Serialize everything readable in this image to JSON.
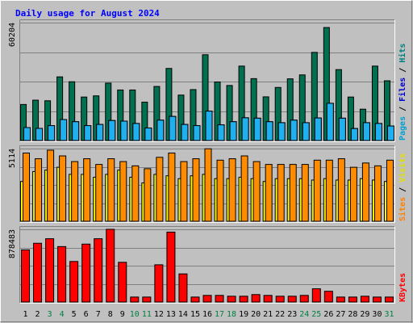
{
  "chart_data": {
    "type": "bar",
    "title": "Daily usage for August 2024",
    "categories": [
      "1",
      "2",
      "3",
      "4",
      "5",
      "6",
      "7",
      "8",
      "9",
      "10",
      "11",
      "12",
      "13",
      "14",
      "15",
      "16",
      "17",
      "18",
      "19",
      "20",
      "21",
      "22",
      "23",
      "24",
      "25",
      "26",
      "27",
      "28",
      "29",
      "30",
      "31"
    ],
    "weekend_days": [
      "3",
      "4",
      "10",
      "11",
      "17",
      "18",
      "24",
      "25",
      "31"
    ],
    "panels": [
      {
        "id": "hits-panel",
        "ymax_label": "60204",
        "ymax": 60204,
        "side_labels": [
          {
            "text": "Pages",
            "color": "#00a0d0"
          },
          {
            "text": " / ",
            "color": "#000000"
          },
          {
            "text": "Files",
            "color": "#0000cc"
          },
          {
            "text": " / ",
            "color": "#000000"
          },
          {
            "text": "Hits",
            "color": "#008080"
          }
        ],
        "series": [
          {
            "name": "Hits",
            "color": "#007050",
            "values": [
              18400,
              20600,
              20300,
              32500,
              30000,
              22200,
              22800,
              29300,
              25800,
              25800,
              19600,
              27600,
              36800,
              23200,
              26000,
              43800,
              29900,
              28100,
              38000,
              31600,
              22300,
              27100,
              31500,
              33500,
              45000,
              57700,
              36200,
              22200,
              16000,
              38000,
              30500
            ]
          },
          {
            "name": "Files",
            "color": "#4040ff",
            "values": [
              6600,
              6200,
              7600,
              10700,
              9600,
              7600,
              8200,
              10200,
              9900,
              8700,
              6400,
              10400,
              12300,
              8200,
              7600,
              15000,
              8000,
              9600,
              11600,
              11400,
              9600,
              9100,
              10400,
              9100,
              11500,
              19000,
              11400,
              6100,
              9100,
              8700,
              7400
            ]
          },
          {
            "name": "Pages",
            "color": "#20b0f0",
            "values": [
              6600,
              6200,
              7600,
              10700,
              9600,
              7600,
              8200,
              10200,
              9900,
              8700,
              6400,
              10400,
              12300,
              8200,
              7600,
              15000,
              8000,
              9600,
              11600,
              11400,
              9600,
              9100,
              10400,
              9100,
              11500,
              19000,
              11400,
              6100,
              9100,
              8700,
              7400
            ]
          }
        ]
      },
      {
        "id": "visits-panel",
        "ymax_label": "5114",
        "ymax": 5114,
        "side_labels": [
          {
            "text": "Sites",
            "color": "#ff8000"
          },
          {
            "text": " / ",
            "color": "#000000"
          },
          {
            "text": "Visits",
            "color": "#e0e000"
          }
        ],
        "series": [
          {
            "name": "Visits",
            "color": "#f8f800",
            "values": [
              2800,
              3500,
              3600,
              3800,
              3300,
              3300,
              3100,
              3300,
              3600,
              3100,
              2700,
              3300,
              3200,
              3000,
              3200,
              3300,
              3000,
              3000,
              3100,
              3000,
              2800,
              3000,
              3000,
              3000,
              2900,
              3000,
              2900,
              2900,
              3000,
              2900,
              2800
            ]
          },
          {
            "name": "Sites",
            "color": "#ff8c00",
            "values": [
              4800,
              4400,
              5000,
              4600,
              4200,
              4400,
              4000,
              4400,
              4200,
              3900,
              3700,
              4500,
              4800,
              4200,
              4400,
              5100,
              4300,
              4400,
              4600,
              4200,
              4000,
              4000,
              4000,
              4000,
              4300,
              4300,
              4400,
              3800,
              4100,
              3900,
              4300
            ]
          }
        ]
      },
      {
        "id": "kbytes-panel",
        "ymax_label": "878483",
        "ymax": 878483,
        "side_labels": [
          {
            "text": "KBytes",
            "color": "#ff0000"
          }
        ],
        "series": [
          {
            "name": "KBytes",
            "color": "#ff0000",
            "values": [
              630000,
              710000,
              765000,
              670000,
              490000,
              700000,
              765000,
              878483,
              480000,
              60000,
              60000,
              450000,
              845000,
              340000,
              60000,
              80000,
              80000,
              70000,
              70000,
              90000,
              80000,
              70000,
              70000,
              80000,
              160000,
              130000,
              60000,
              60000,
              70000,
              60000,
              60000
            ]
          }
        ]
      }
    ]
  }
}
